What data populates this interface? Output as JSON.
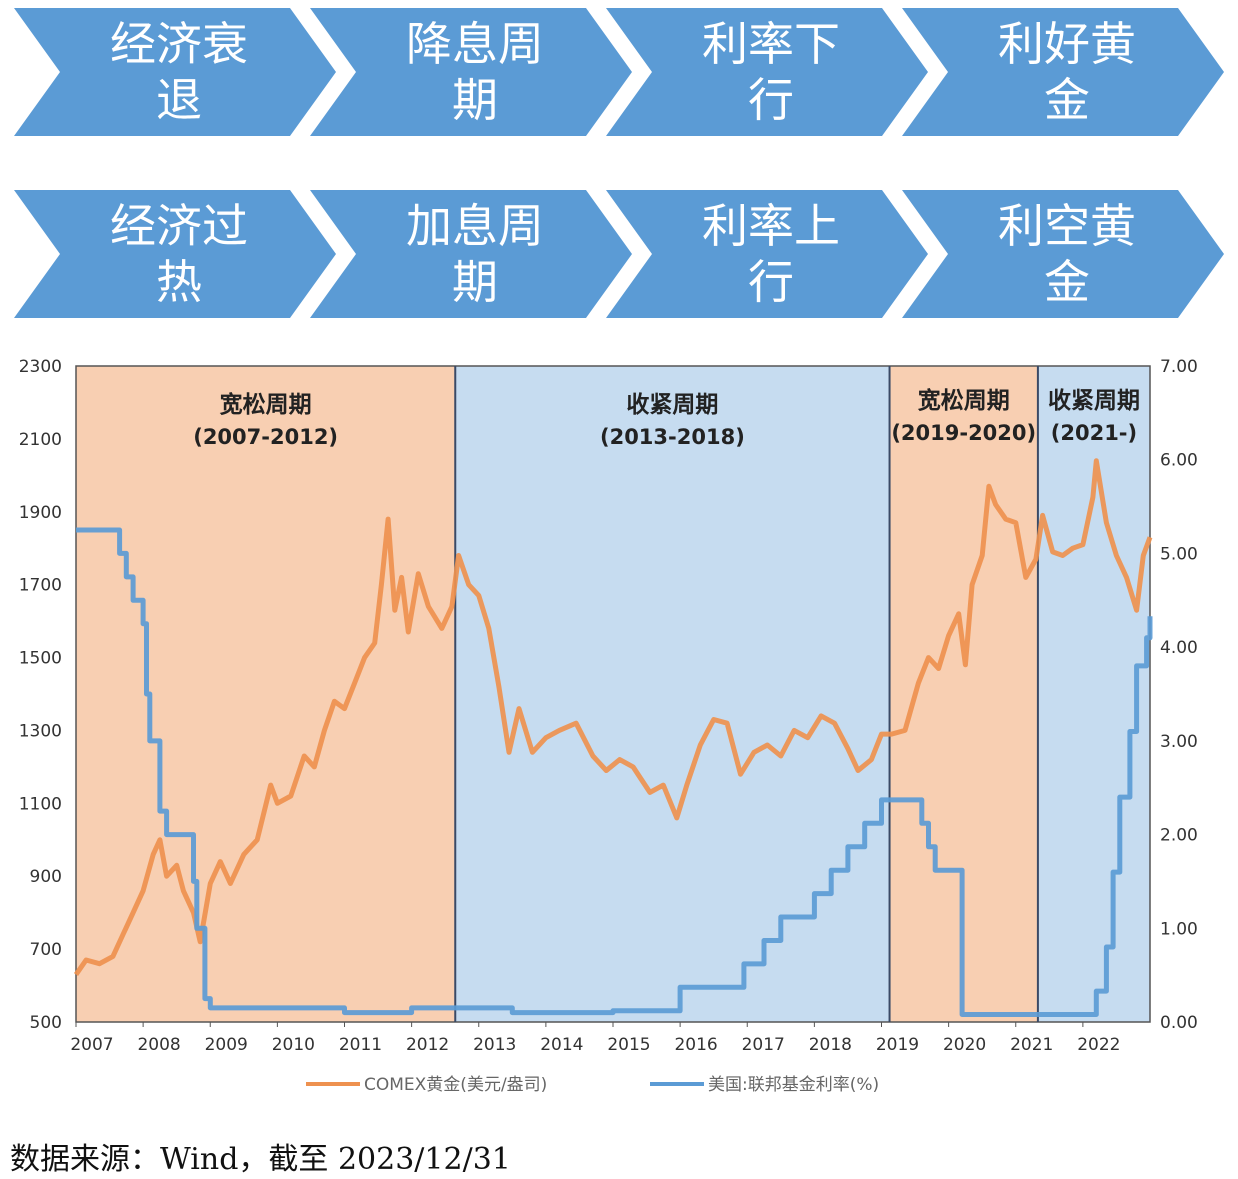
{
  "flow": {
    "rows": [
      [
        "经济衰\n退",
        "降息周\n期",
        "利率下\n行",
        "利好黄\n金"
      ],
      [
        "经济过\n热",
        "加息周\n期",
        "利率上\n行",
        "利空黄\n金"
      ]
    ],
    "colors": {
      "arrow": "#5b9bd5",
      "text": "#ffffff"
    }
  },
  "chart_data": {
    "type": "line",
    "x_range": [
      2007,
      2023
    ],
    "x_ticks": [
      "2007",
      "2008",
      "2009",
      "2010",
      "2011",
      "2012",
      "2013",
      "2014",
      "2015",
      "2016",
      "2017",
      "2018",
      "2019",
      "2020",
      "2021",
      "2022"
    ],
    "y_left": {
      "range": [
        500,
        2300
      ],
      "ticks": [
        "500",
        "700",
        "900",
        "1100",
        "1300",
        "1500",
        "1700",
        "1900",
        "2100",
        "2300"
      ]
    },
    "y_right": {
      "range": [
        0,
        7
      ],
      "ticks": [
        "0.00",
        "1.00",
        "2.00",
        "3.00",
        "4.00",
        "5.00",
        "6.00",
        "7.00"
      ]
    },
    "grid": false,
    "legend_position": "bottom",
    "periods": [
      {
        "label": "宽松周期",
        "sub": "(2007-2012)",
        "start": 2007.0,
        "end": 2012.65,
        "color": "#f8cfb2"
      },
      {
        "label": "收紧周期",
        "sub": "(2013-2018)",
        "start": 2012.65,
        "end": 2019.12,
        "color": "#c6dcf0"
      },
      {
        "label": "宽松周期",
        "sub": "(2019-2020)",
        "start": 2019.12,
        "end": 2021.33,
        "color": "#f8cfb2"
      },
      {
        "label": "收紧周期",
        "sub": "(2021-)",
        "start": 2021.33,
        "end": 2023.0,
        "color": "#c6dcf0"
      }
    ],
    "series": [
      {
        "name": "COMEX黄金(美元/盎司)",
        "axis": "left",
        "color": "#ee914f",
        "points": [
          [
            2007.0,
            630
          ],
          [
            2007.15,
            670
          ],
          [
            2007.35,
            660
          ],
          [
            2007.55,
            680
          ],
          [
            2007.7,
            740
          ],
          [
            2007.85,
            800
          ],
          [
            2008.0,
            860
          ],
          [
            2008.15,
            960
          ],
          [
            2008.25,
            1000
          ],
          [
            2008.35,
            900
          ],
          [
            2008.5,
            930
          ],
          [
            2008.6,
            860
          ],
          [
            2008.75,
            800
          ],
          [
            2008.85,
            720
          ],
          [
            2009.0,
            880
          ],
          [
            2009.15,
            940
          ],
          [
            2009.3,
            880
          ],
          [
            2009.5,
            960
          ],
          [
            2009.7,
            1000
          ],
          [
            2009.9,
            1150
          ],
          [
            2010.0,
            1100
          ],
          [
            2010.2,
            1120
          ],
          [
            2010.4,
            1230
          ],
          [
            2010.55,
            1200
          ],
          [
            2010.7,
            1300
          ],
          [
            2010.85,
            1380
          ],
          [
            2011.0,
            1360
          ],
          [
            2011.15,
            1430
          ],
          [
            2011.3,
            1500
          ],
          [
            2011.45,
            1540
          ],
          [
            2011.55,
            1700
          ],
          [
            2011.65,
            1880
          ],
          [
            2011.75,
            1630
          ],
          [
            2011.85,
            1720
          ],
          [
            2011.95,
            1570
          ],
          [
            2012.1,
            1730
          ],
          [
            2012.25,
            1640
          ],
          [
            2012.45,
            1580
          ],
          [
            2012.6,
            1640
          ],
          [
            2012.7,
            1780
          ],
          [
            2012.85,
            1700
          ],
          [
            2013.0,
            1670
          ],
          [
            2013.15,
            1580
          ],
          [
            2013.3,
            1420
          ],
          [
            2013.45,
            1240
          ],
          [
            2013.6,
            1360
          ],
          [
            2013.8,
            1240
          ],
          [
            2014.0,
            1280
          ],
          [
            2014.2,
            1300
          ],
          [
            2014.45,
            1320
          ],
          [
            2014.7,
            1230
          ],
          [
            2014.9,
            1190
          ],
          [
            2015.1,
            1220
          ],
          [
            2015.3,
            1200
          ],
          [
            2015.55,
            1130
          ],
          [
            2015.75,
            1150
          ],
          [
            2015.95,
            1060
          ],
          [
            2016.1,
            1150
          ],
          [
            2016.3,
            1260
          ],
          [
            2016.5,
            1330
          ],
          [
            2016.7,
            1320
          ],
          [
            2016.9,
            1180
          ],
          [
            2017.1,
            1240
          ],
          [
            2017.3,
            1260
          ],
          [
            2017.5,
            1230
          ],
          [
            2017.7,
            1300
          ],
          [
            2017.9,
            1280
          ],
          [
            2018.1,
            1340
          ],
          [
            2018.3,
            1320
          ],
          [
            2018.5,
            1250
          ],
          [
            2018.65,
            1190
          ],
          [
            2018.85,
            1220
          ],
          [
            2019.0,
            1290
          ],
          [
            2019.15,
            1290
          ],
          [
            2019.35,
            1300
          ],
          [
            2019.55,
            1430
          ],
          [
            2019.7,
            1500
          ],
          [
            2019.85,
            1470
          ],
          [
            2020.0,
            1560
          ],
          [
            2020.15,
            1620
          ],
          [
            2020.25,
            1480
          ],
          [
            2020.35,
            1700
          ],
          [
            2020.5,
            1780
          ],
          [
            2020.6,
            1970
          ],
          [
            2020.7,
            1920
          ],
          [
            2020.85,
            1880
          ],
          [
            2021.0,
            1870
          ],
          [
            2021.15,
            1720
          ],
          [
            2021.3,
            1770
          ],
          [
            2021.4,
            1890
          ],
          [
            2021.55,
            1790
          ],
          [
            2021.7,
            1780
          ],
          [
            2021.85,
            1800
          ],
          [
            2022.0,
            1810
          ],
          [
            2022.15,
            1940
          ],
          [
            2022.2,
            2040
          ],
          [
            2022.35,
            1870
          ],
          [
            2022.5,
            1780
          ],
          [
            2022.65,
            1720
          ],
          [
            2022.8,
            1630
          ],
          [
            2022.9,
            1780
          ],
          [
            2023.0,
            1830
          ]
        ]
      },
      {
        "name": "美国:联邦基金利率(%)",
        "axis": "right",
        "color": "#5b9bd5",
        "points": [
          [
            2007.0,
            5.25
          ],
          [
            2007.6,
            5.25
          ],
          [
            2007.65,
            5.0
          ],
          [
            2007.75,
            4.75
          ],
          [
            2007.85,
            4.5
          ],
          [
            2008.0,
            4.25
          ],
          [
            2008.05,
            3.5
          ],
          [
            2008.1,
            3.0
          ],
          [
            2008.25,
            2.25
          ],
          [
            2008.35,
            2.0
          ],
          [
            2008.75,
            1.5
          ],
          [
            2008.8,
            1.0
          ],
          [
            2008.92,
            0.25
          ],
          [
            2009.0,
            0.15
          ],
          [
            2009.5,
            0.15
          ],
          [
            2010.0,
            0.15
          ],
          [
            2011.0,
            0.1
          ],
          [
            2012.0,
            0.15
          ],
          [
            2012.65,
            0.15
          ],
          [
            2013.5,
            0.1
          ],
          [
            2014.5,
            0.1
          ],
          [
            2015.0,
            0.12
          ],
          [
            2015.95,
            0.12
          ],
          [
            2016.0,
            0.37
          ],
          [
            2016.9,
            0.37
          ],
          [
            2016.95,
            0.62
          ],
          [
            2017.2,
            0.62
          ],
          [
            2017.25,
            0.87
          ],
          [
            2017.45,
            0.87
          ],
          [
            2017.5,
            1.12
          ],
          [
            2017.95,
            1.12
          ],
          [
            2018.0,
            1.37
          ],
          [
            2018.2,
            1.37
          ],
          [
            2018.25,
            1.62
          ],
          [
            2018.45,
            1.62
          ],
          [
            2018.5,
            1.87
          ],
          [
            2018.7,
            1.87
          ],
          [
            2018.75,
            2.12
          ],
          [
            2018.95,
            2.12
          ],
          [
            2019.0,
            2.37
          ],
          [
            2019.55,
            2.37
          ],
          [
            2019.6,
            2.12
          ],
          [
            2019.7,
            1.87
          ],
          [
            2019.8,
            1.62
          ],
          [
            2020.15,
            1.62
          ],
          [
            2020.2,
            0.08
          ],
          [
            2021.0,
            0.08
          ],
          [
            2022.0,
            0.08
          ],
          [
            2022.2,
            0.33
          ],
          [
            2022.35,
            0.8
          ],
          [
            2022.45,
            1.6
          ],
          [
            2022.55,
            2.4
          ],
          [
            2022.7,
            3.1
          ],
          [
            2022.8,
            3.8
          ],
          [
            2022.95,
            4.1
          ],
          [
            2023.0,
            4.33
          ]
        ]
      }
    ]
  },
  "source": "数据来源：Wind，截至 2023/12/31"
}
